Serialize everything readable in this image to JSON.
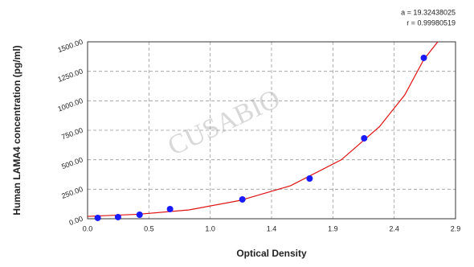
{
  "chart_data": {
    "type": "scatter",
    "x_label": "Optical Density",
    "y_label": "Human LAMA4 concentration (pg/ml)",
    "annotations": [
      "a = 19.32438025",
      "r = 0.99980519"
    ],
    "watermark": "CUSABIO",
    "xlim": [
      0,
      2.9
    ],
    "xticks": [
      {
        "value": 0,
        "label": "0.0"
      },
      {
        "value": 0.4833,
        "label": "0.5"
      },
      {
        "value": 0.9667,
        "label": "1.0"
      },
      {
        "value": 1.45,
        "label": "1.4"
      },
      {
        "value": 1.9333,
        "label": "1.9"
      },
      {
        "value": 2.4167,
        "label": "2.4"
      },
      {
        "value": 2.9,
        "label": "2.9"
      }
    ],
    "ylim": [
      0,
      1500
    ],
    "yticks": [
      {
        "value": 0,
        "label": "0.00"
      },
      {
        "value": 250,
        "label": "250.00"
      },
      {
        "value": 500,
        "label": "500.00"
      },
      {
        "value": 750,
        "label": "750.00"
      },
      {
        "value": 1000,
        "label": "1000.00"
      },
      {
        "value": 1250,
        "label": "1250.00"
      },
      {
        "value": 1500,
        "label": "1500.00"
      }
    ],
    "grid": true,
    "series": [
      {
        "color": "#1a1aff",
        "x": [
          0.08,
          0.24,
          0.41,
          0.65,
          1.22,
          1.75,
          2.18,
          2.65
        ],
        "values": [
          7,
          14,
          34,
          82,
          164,
          341,
          682,
          1364
        ]
      },
      {
        "color": "#e01010",
        "line": true,
        "x": [
          0,
          0.4,
          0.8,
          1.2,
          1.6,
          2.0,
          2.3,
          2.5,
          2.65,
          2.76
        ],
        "values": [
          20,
          38,
          75,
          155,
          280,
          500,
          780,
          1050,
          1350,
          1500
        ]
      }
    ]
  }
}
